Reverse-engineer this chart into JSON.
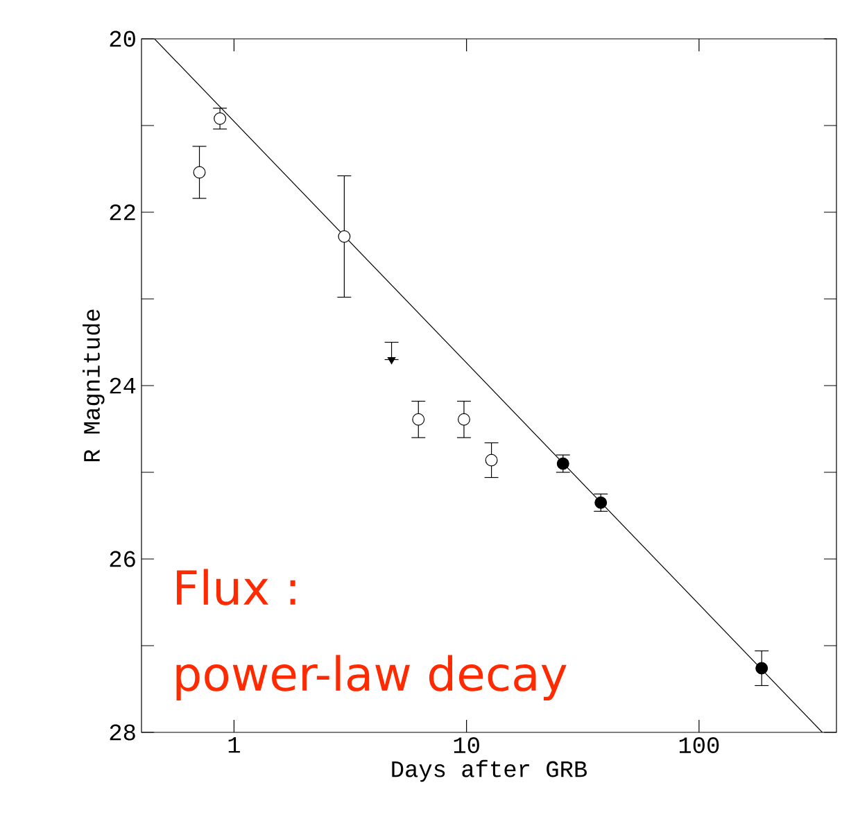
{
  "chart_data": {
    "type": "scatter",
    "xlabel": "Days after GRB",
    "ylabel": "R Magnitude",
    "log": "x",
    "xlim": [
      0.4,
      390
    ],
    "xticks": [
      1,
      10,
      100
    ],
    "ylim": [
      28,
      20
    ],
    "yticks": [
      20,
      {
        "value": 21,
        "label": null
      },
      22,
      {
        "value": 23,
        "label": null
      },
      24,
      {
        "value": 25,
        "label": null
      },
      26,
      {
        "value": 27,
        "label": null
      },
      28
    ],
    "grid": false,
    "annotations": [
      "Flux :",
      "power-law decay"
    ],
    "series": [
      {
        "type": "line",
        "color": "#000000",
        "marker": "none",
        "line_style": "solid",
        "x": [
          0.455,
          339
        ],
        "values": [
          20,
          28
        ]
      },
      {
        "type": "scatter",
        "color": "#000000",
        "colors": [
          "#ffffff",
          "#ffffff",
          "#ffffff",
          "#ffffff",
          "#ffffff",
          "#ffffff"
        ],
        "marker": "circle",
        "x": [
          0.71,
          0.87,
          2.98,
          6.21,
          9.75,
          12.8
        ],
        "values": [
          21.54,
          20.92,
          22.28,
          24.39,
          24.39,
          24.86
        ],
        "errors": [
          0.3,
          0.12,
          0.7,
          0.21,
          0.21,
          0.2
        ]
      },
      {
        "type": "scatter",
        "color": "#000000",
        "marker": "triangle",
        "x": [
          4.76
        ],
        "values": [
          23.7
        ],
        "errors": [
          [
            23.5,
            23.7
          ]
        ]
      },
      {
        "type": "scatter",
        "color": "#000000",
        "colors": [
          "#000000",
          "#000000",
          "#000000"
        ],
        "marker": "circle",
        "x": [
          26.0,
          37.8,
          186
        ],
        "values": [
          24.9,
          25.35,
          27.26
        ],
        "errors": [
          0.1,
          0.1,
          0.2
        ]
      }
    ]
  }
}
